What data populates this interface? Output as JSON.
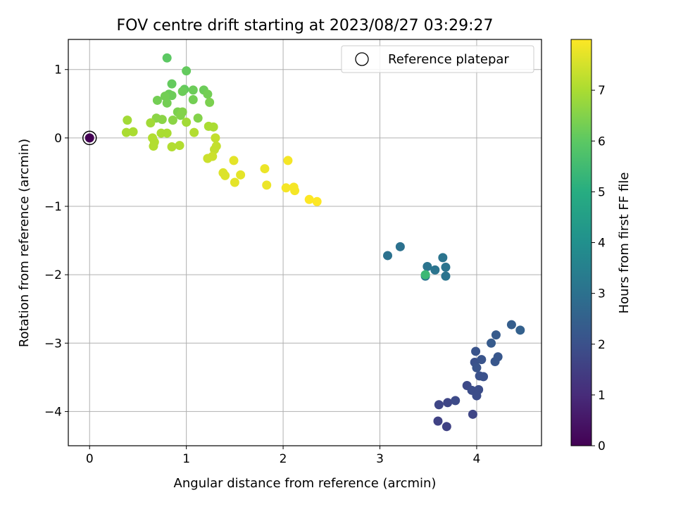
{
  "chart_data": {
    "type": "scatter",
    "title": "FOV centre drift starting at 2023/08/27 03:29:27",
    "xlabel": "Angular distance from reference (arcmin)",
    "ylabel": "Rotation from reference (arcmin)",
    "xlim": [
      -0.22,
      4.67
    ],
    "ylim": [
      -4.5,
      1.44
    ],
    "xticks": [
      0,
      1,
      2,
      3,
      4
    ],
    "yticks": [
      -4,
      -3,
      -2,
      -1,
      0,
      1
    ],
    "grid": true,
    "legend": {
      "placement": "top-right",
      "entries": [
        "Reference platepar"
      ]
    },
    "colorbar": {
      "label": "Hours from first FF file",
      "range": [
        0,
        8.0
      ],
      "ticks": [
        0,
        1,
        2,
        3,
        4,
        5,
        6,
        7
      ],
      "colormap": "viridis"
    },
    "reference_point": {
      "x": 0,
      "y": 0,
      "hours": 0
    },
    "points": [
      {
        "x": 3.6,
        "y": -4.14,
        "h": 1.6
      },
      {
        "x": 3.69,
        "y": -4.22,
        "h": 1.6
      },
      {
        "x": 3.96,
        "y": -4.04,
        "h": 1.7
      },
      {
        "x": 3.61,
        "y": -3.9,
        "h": 1.7
      },
      {
        "x": 3.7,
        "y": -3.87,
        "h": 1.7
      },
      {
        "x": 3.78,
        "y": -3.84,
        "h": 1.8
      },
      {
        "x": 3.9,
        "y": -3.62,
        "h": 1.8
      },
      {
        "x": 3.95,
        "y": -3.69,
        "h": 1.9
      },
      {
        "x": 4.02,
        "y": -3.68,
        "h": 1.9
      },
      {
        "x": 4.0,
        "y": -3.77,
        "h": 1.9
      },
      {
        "x": 4.03,
        "y": -3.48,
        "h": 2.0
      },
      {
        "x": 4.07,
        "y": -3.49,
        "h": 2.0
      },
      {
        "x": 3.98,
        "y": -3.28,
        "h": 2.0
      },
      {
        "x": 4.0,
        "y": -3.36,
        "h": 2.1
      },
      {
        "x": 4.05,
        "y": -3.24,
        "h": 2.1
      },
      {
        "x": 3.99,
        "y": -3.12,
        "h": 2.1
      },
      {
        "x": 4.19,
        "y": -3.27,
        "h": 2.2
      },
      {
        "x": 4.22,
        "y": -3.2,
        "h": 2.2
      },
      {
        "x": 4.15,
        "y": -3.0,
        "h": 2.3
      },
      {
        "x": 4.2,
        "y": -2.88,
        "h": 2.3
      },
      {
        "x": 4.36,
        "y": -2.73,
        "h": 2.4
      },
      {
        "x": 4.45,
        "y": -2.81,
        "h": 2.5
      },
      {
        "x": 3.08,
        "y": -1.72,
        "h": 3.0
      },
      {
        "x": 3.21,
        "y": -1.59,
        "h": 3.0
      },
      {
        "x": 3.47,
        "y": -2.02,
        "h": 3.1
      },
      {
        "x": 3.49,
        "y": -1.88,
        "h": 3.1
      },
      {
        "x": 3.57,
        "y": -1.93,
        "h": 3.1
      },
      {
        "x": 3.65,
        "y": -1.75,
        "h": 3.1
      },
      {
        "x": 3.68,
        "y": -2.02,
        "h": 3.1
      },
      {
        "x": 3.68,
        "y": -1.89,
        "h": 3.1
      },
      {
        "x": 3.47,
        "y": -2.0,
        "h": 5.4
      },
      {
        "x": 0.8,
        "y": 1.17,
        "h": 6.0
      },
      {
        "x": 1.0,
        "y": 0.98,
        "h": 6.1
      },
      {
        "x": 0.85,
        "y": 0.79,
        "h": 6.1
      },
      {
        "x": 0.98,
        "y": 0.71,
        "h": 6.1
      },
      {
        "x": 1.07,
        "y": 0.7,
        "h": 6.2
      },
      {
        "x": 1.18,
        "y": 0.7,
        "h": 6.2
      },
      {
        "x": 0.96,
        "y": 0.68,
        "h": 6.2
      },
      {
        "x": 0.82,
        "y": 0.64,
        "h": 6.2
      },
      {
        "x": 0.85,
        "y": 0.62,
        "h": 6.2
      },
      {
        "x": 0.78,
        "y": 0.61,
        "h": 6.3
      },
      {
        "x": 1.22,
        "y": 0.64,
        "h": 6.3
      },
      {
        "x": 1.07,
        "y": 0.56,
        "h": 6.3
      },
      {
        "x": 0.7,
        "y": 0.55,
        "h": 6.3
      },
      {
        "x": 0.8,
        "y": 0.51,
        "h": 6.3
      },
      {
        "x": 1.24,
        "y": 0.52,
        "h": 6.4
      },
      {
        "x": 0.91,
        "y": 0.38,
        "h": 6.4
      },
      {
        "x": 0.96,
        "y": 0.38,
        "h": 6.5
      },
      {
        "x": 0.94,
        "y": 0.33,
        "h": 6.5
      },
      {
        "x": 1.12,
        "y": 0.29,
        "h": 6.5
      },
      {
        "x": 0.69,
        "y": 0.29,
        "h": 6.6
      },
      {
        "x": 0.75,
        "y": 0.27,
        "h": 6.6
      },
      {
        "x": 0.86,
        "y": 0.26,
        "h": 6.6
      },
      {
        "x": 0.39,
        "y": 0.26,
        "h": 6.9
      },
      {
        "x": 0.63,
        "y": 0.22,
        "h": 6.9
      },
      {
        "x": 1.0,
        "y": 0.23,
        "h": 6.9
      },
      {
        "x": 1.23,
        "y": 0.17,
        "h": 7.0
      },
      {
        "x": 1.28,
        "y": 0.16,
        "h": 7.0
      },
      {
        "x": 0.38,
        "y": 0.08,
        "h": 7.0
      },
      {
        "x": 0.45,
        "y": 0.09,
        "h": 7.0
      },
      {
        "x": 0.74,
        "y": 0.07,
        "h": 7.0
      },
      {
        "x": 0.8,
        "y": 0.07,
        "h": 7.0
      },
      {
        "x": 1.08,
        "y": 0.08,
        "h": 7.1
      },
      {
        "x": 0.65,
        "y": 0.0,
        "h": 7.1
      },
      {
        "x": 0.67,
        "y": -0.06,
        "h": 7.1
      },
      {
        "x": 0.66,
        "y": -0.12,
        "h": 7.1
      },
      {
        "x": 0.85,
        "y": -0.13,
        "h": 7.1
      },
      {
        "x": 0.93,
        "y": -0.11,
        "h": 7.1
      },
      {
        "x": 1.3,
        "y": 0.0,
        "h": 7.3
      },
      {
        "x": 1.31,
        "y": -0.12,
        "h": 7.3
      },
      {
        "x": 1.29,
        "y": -0.17,
        "h": 7.3
      },
      {
        "x": 1.22,
        "y": -0.3,
        "h": 7.4
      },
      {
        "x": 1.27,
        "y": -0.27,
        "h": 7.4
      },
      {
        "x": 1.38,
        "y": -0.51,
        "h": 7.6
      },
      {
        "x": 1.4,
        "y": -0.55,
        "h": 7.6
      },
      {
        "x": 1.49,
        "y": -0.33,
        "h": 7.7
      },
      {
        "x": 1.56,
        "y": -0.54,
        "h": 7.7
      },
      {
        "x": 1.5,
        "y": -0.65,
        "h": 7.7
      },
      {
        "x": 1.81,
        "y": -0.45,
        "h": 7.8
      },
      {
        "x": 1.83,
        "y": -0.69,
        "h": 7.8
      },
      {
        "x": 2.05,
        "y": -0.33,
        "h": 7.9
      },
      {
        "x": 2.03,
        "y": -0.73,
        "h": 7.9
      },
      {
        "x": 2.11,
        "y": -0.72,
        "h": 7.9
      },
      {
        "x": 2.12,
        "y": -0.77,
        "h": 7.9
      },
      {
        "x": 2.27,
        "y": -0.9,
        "h": 8.0
      },
      {
        "x": 2.35,
        "y": -0.93,
        "h": 8.0
      }
    ]
  }
}
